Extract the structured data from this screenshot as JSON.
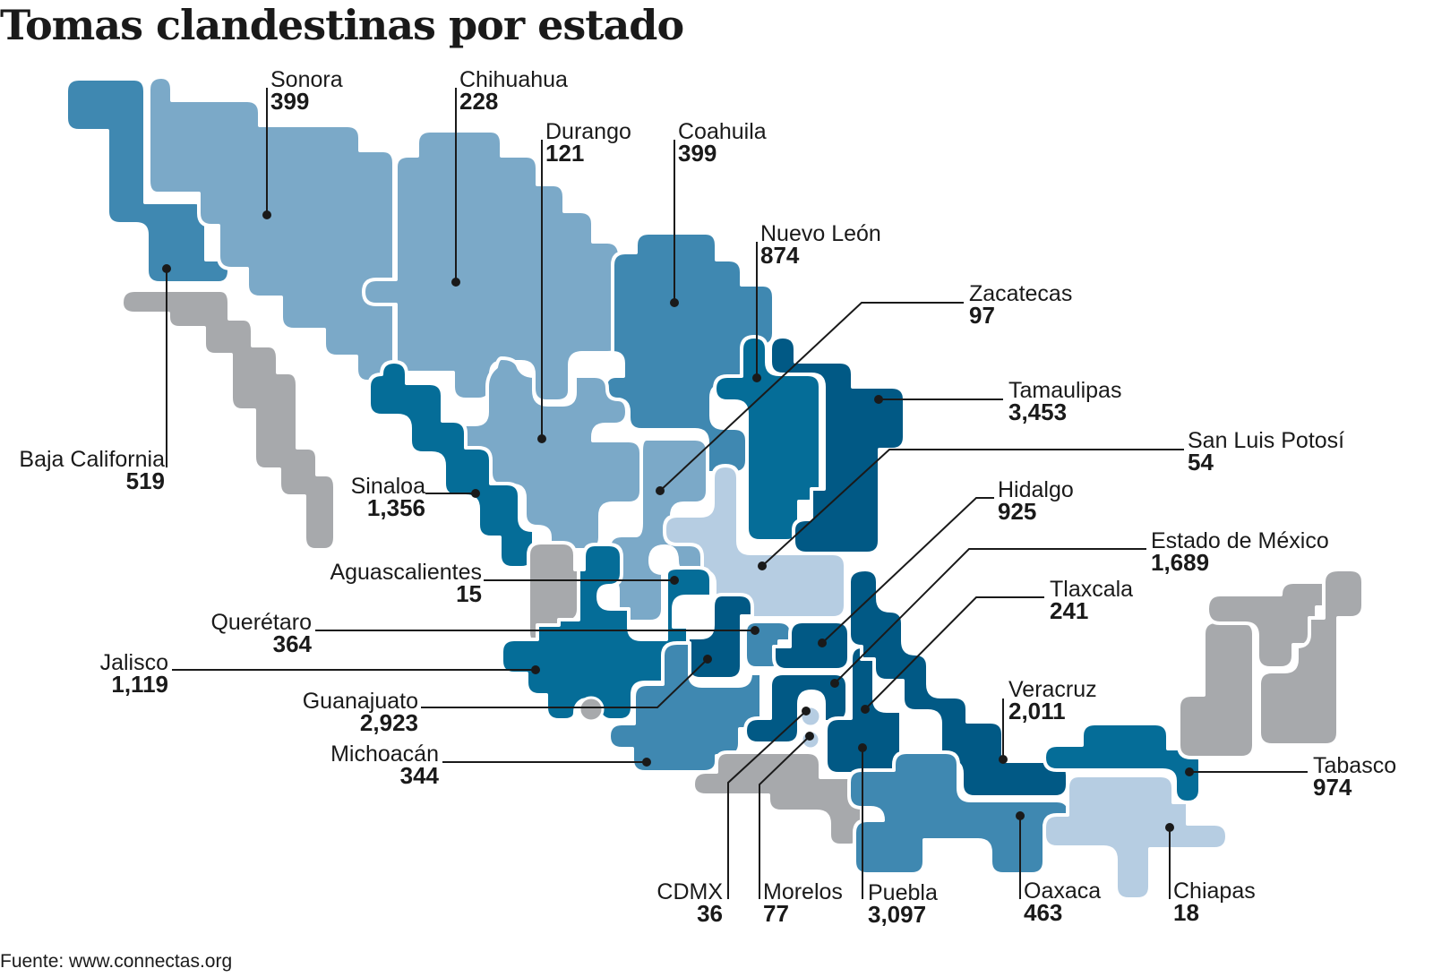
{
  "title": "Tomas clandestinas por estado",
  "source": "Fuente: www.connectas.org",
  "colors": {
    "none": "#a7a9ac",
    "level1": "#b6cde2",
    "level2": "#7ba9c8",
    "level3": "#3f88b1",
    "level4": "#056d98",
    "level5": "#015985"
  },
  "states": [
    {
      "id": "baja-california",
      "name": "Baja California",
      "value": "519"
    },
    {
      "id": "sonora",
      "name": "Sonora",
      "value": "399"
    },
    {
      "id": "chihuahua",
      "name": "Chihuahua",
      "value": "228"
    },
    {
      "id": "durango",
      "name": "Durango",
      "value": "121"
    },
    {
      "id": "coahuila",
      "name": "Coahuila",
      "value": "399"
    },
    {
      "id": "nuevo-leon",
      "name": "Nuevo León",
      "value": "874"
    },
    {
      "id": "zacatecas",
      "name": "Zacatecas",
      "value": "97"
    },
    {
      "id": "tamaulipas",
      "name": "Tamaulipas",
      "value": "3,453"
    },
    {
      "id": "san-luis-potosi",
      "name": "San Luis Potosí",
      "value": "54"
    },
    {
      "id": "hidalgo",
      "name": "Hidalgo",
      "value": "925"
    },
    {
      "id": "estado-de-mexico",
      "name": "Estado de México",
      "value": "1,689"
    },
    {
      "id": "tlaxcala",
      "name": "Tlaxcala",
      "value": "241"
    },
    {
      "id": "veracruz",
      "name": "Veracruz",
      "value": "2,011"
    },
    {
      "id": "tabasco",
      "name": "Tabasco",
      "value": "974"
    },
    {
      "id": "sinaloa",
      "name": "Sinaloa",
      "value": "1,356"
    },
    {
      "id": "aguascalientes",
      "name": "Aguascalientes",
      "value": "15"
    },
    {
      "id": "queretaro",
      "name": "Querétaro",
      "value": "364"
    },
    {
      "id": "jalisco",
      "name": "Jalisco",
      "value": "1,119"
    },
    {
      "id": "guanajuato",
      "name": "Guanajuato",
      "value": "2,923"
    },
    {
      "id": "michoacan",
      "name": "Michoacán",
      "value": "344"
    },
    {
      "id": "cdmx",
      "name": "CDMX",
      "value": "36"
    },
    {
      "id": "morelos",
      "name": "Morelos",
      "value": "77"
    },
    {
      "id": "puebla",
      "name": "Puebla",
      "value": "3,097"
    },
    {
      "id": "oaxaca",
      "name": "Oaxaca",
      "value": "463"
    },
    {
      "id": "chiapas",
      "name": "Chiapas",
      "value": "18"
    }
  ]
}
